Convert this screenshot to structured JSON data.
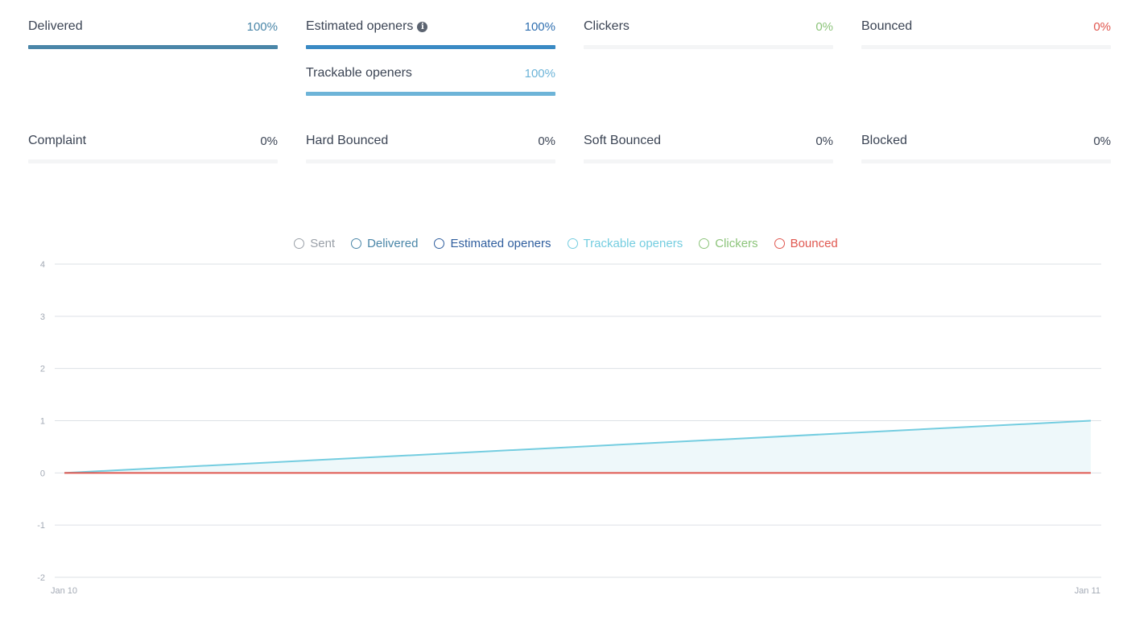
{
  "stats_row1": [
    {
      "label": "Delivered",
      "pct": "100%",
      "fraction": 1.0,
      "color": "#4a86a8"
    },
    {
      "label": "Estimated openers",
      "pct": "100%",
      "fraction": 1.0,
      "color": "#3a8ac4",
      "info_icon": "info-circle-icon"
    },
    {
      "label": "Clickers",
      "pct": "0%",
      "fraction": 0.0,
      "color": "#8cc47a"
    },
    {
      "label": "Bounced",
      "pct": "0%",
      "fraction": 0.0,
      "color": "#e0574f"
    }
  ],
  "stats_trackable": {
    "label": "Trackable openers",
    "pct": "100%",
    "fraction": 1.0,
    "color": "#6db4d8"
  },
  "stats_row2": [
    {
      "label": "Complaint",
      "pct": "0%",
      "fraction": 0.0,
      "color": "#3b4454"
    },
    {
      "label": "Hard Bounced",
      "pct": "0%",
      "fraction": 0.0,
      "color": "#3b4454"
    },
    {
      "label": "Soft Bounced",
      "pct": "0%",
      "fraction": 0.0,
      "color": "#3b4454"
    },
    {
      "label": "Blocked",
      "pct": "0%",
      "fraction": 0.0,
      "color": "#3b4454"
    }
  ],
  "legend": [
    {
      "label": "Sent",
      "color": "#9aa0a8"
    },
    {
      "label": "Delivered",
      "color": "#4a86a8"
    },
    {
      "label": "Estimated openers",
      "color": "#2f5e9e"
    },
    {
      "label": "Trackable openers",
      "color": "#74cde0"
    },
    {
      "label": "Clickers",
      "color": "#8cc47a"
    },
    {
      "label": "Bounced",
      "color": "#e0574f"
    }
  ],
  "chart_data": {
    "type": "area",
    "x": [
      "Jan 10",
      "Jan 11"
    ],
    "ylim": [
      -2,
      4
    ],
    "yticks": [
      4,
      3,
      2,
      1,
      0,
      -1,
      -2
    ],
    "grid": true,
    "legend_position": "top-center",
    "series": [
      {
        "name": "Trackable openers",
        "values": [
          0,
          1
        ],
        "color": "#74cde0",
        "fill": "#eef8fa"
      },
      {
        "name": "Bounced",
        "values": [
          0,
          0
        ],
        "color": "#e0574f"
      }
    ]
  }
}
